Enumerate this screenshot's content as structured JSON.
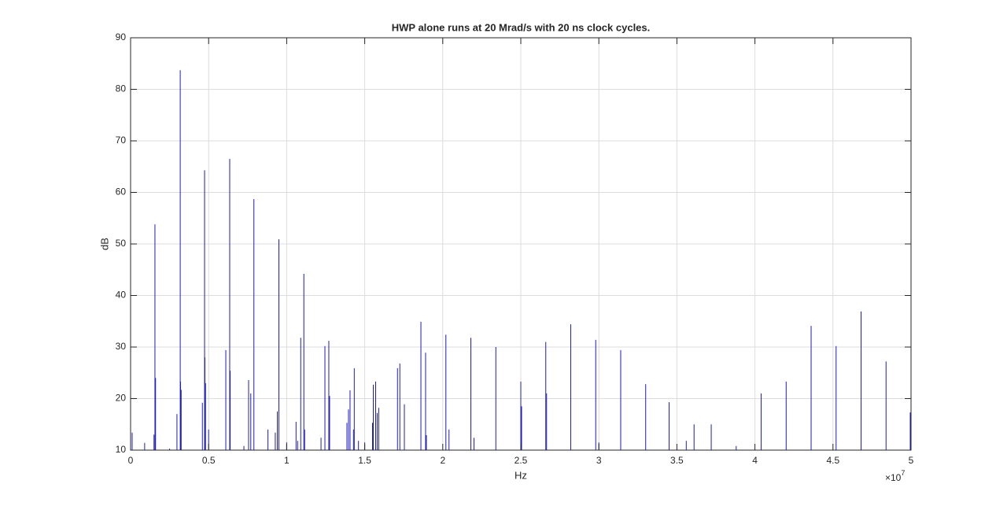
{
  "chart_data": {
    "type": "spectrum",
    "title": "HWP alone runs at 20 Mrad/s with 20 ns clock cycles.",
    "x_label": "Hz",
    "y_label": "dB",
    "x_multiplier": {
      "base": "×10",
      "exponent": "7"
    },
    "color": "#1c1cc4",
    "grid": true,
    "xlim": [
      0,
      50000000
    ],
    "ylim": [
      10,
      90
    ],
    "xticks": [
      0,
      {
        "value": 5000000,
        "label": "0.5"
      },
      {
        "value": 10000000,
        "label": "1"
      },
      {
        "value": 15000000,
        "label": "1.5"
      },
      {
        "value": 20000000,
        "label": "2"
      },
      {
        "value": 25000000,
        "label": "2.5"
      },
      {
        "value": 30000000,
        "label": "3"
      },
      {
        "value": 35000000,
        "label": "3.5"
      },
      {
        "value": 40000000,
        "label": "4"
      },
      {
        "value": 45000000,
        "label": "4.5"
      },
      {
        "value": 50000000,
        "label": "5"
      }
    ],
    "yticks": [
      10,
      20,
      30,
      40,
      50,
      60,
      70,
      80,
      90
    ],
    "x": [
      100000,
      900000,
      1500000,
      1560000,
      1600000,
      2500000,
      2970000,
      3180000,
      3200000,
      3240000,
      4600000,
      4740000,
      4760000,
      4800000,
      5000000,
      6100000,
      6350000,
      6380000,
      7260000,
      7560000,
      7700000,
      7900000,
      8800000,
      9270000,
      9400000,
      9500000,
      10000000,
      10600000,
      10700000,
      10900000,
      11100000,
      11150000,
      12200000,
      12450000,
      12700000,
      12750000,
      13860000,
      13960000,
      14060000,
      14280000,
      14330000,
      14600000,
      15000000,
      15500000,
      15550000,
      15700000,
      15800000,
      15900000,
      17100000,
      17250000,
      17540000,
      18600000,
      18900000,
      18950000,
      20200000,
      20400000,
      21800000,
      22000000,
      23400000,
      25000000,
      25050000,
      26600000,
      26650000,
      28200000,
      29800000,
      30000000,
      31400000,
      33000000,
      34500000,
      35600000,
      36100000,
      37200000,
      38800000,
      40400000,
      42000000,
      43600000,
      45200000,
      46800000,
      48400000,
      49950000
    ],
    "values": [
      13.4,
      11.4,
      13,
      53.8,
      24,
      10.3,
      17,
      83.7,
      23.3,
      21.7,
      19.2,
      64.3,
      28,
      23,
      14,
      29.4,
      66.5,
      25.4,
      10.8,
      23.6,
      21,
      58.7,
      14,
      13.4,
      17.5,
      50.9,
      11.5,
      15.5,
      11.8,
      31.8,
      44.2,
      14,
      12.4,
      30.2,
      31.2,
      20.5,
      15.3,
      17.9,
      21.6,
      14,
      25.9,
      11.8,
      11.5,
      15.3,
      22.7,
      23.3,
      17.2,
      18.2,
      25.9,
      26.8,
      18.9,
      34.9,
      28.9,
      12.9,
      32.4,
      14,
      31.8,
      12.4,
      30,
      23.3,
      18.5,
      31,
      21,
      34.4,
      31.4,
      11.5,
      29.4,
      22.8,
      19.3,
      11.8,
      15,
      15,
      10.8,
      21,
      23.3,
      34.1,
      30.2,
      36.9,
      27.2,
      17.3
    ]
  }
}
